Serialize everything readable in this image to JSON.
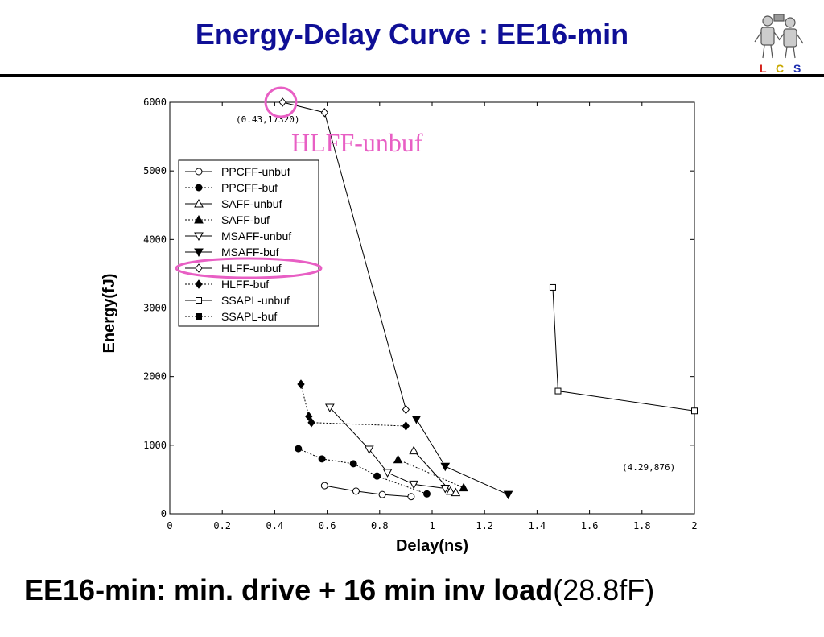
{
  "title": "Energy-Delay Curve : EE16-min",
  "logo": {
    "letters": [
      "L",
      "C",
      "S"
    ],
    "colors": [
      "#d4201a",
      "#c8a800",
      "#2030b0"
    ]
  },
  "caption": {
    "bold": "EE16-min: min. drive + 16 min inv load",
    "normal": "(28.8fF)"
  },
  "highlight_color": "#e85fc4",
  "highlight_label": "HLFF-unbuf",
  "chart_data": {
    "type": "line",
    "xlabel": "Delay(ns)",
    "ylabel": "Energy(fJ)",
    "xlim": [
      0,
      2
    ],
    "ylim": [
      0,
      6000
    ],
    "xticks": [
      "0",
      "0.2",
      "0.4",
      "0.6",
      "0.8",
      "1",
      "1.2",
      "1.4",
      "1.6",
      "1.8",
      "2"
    ],
    "yticks": [
      "0",
      "1000",
      "2000",
      "3000",
      "4000",
      "5000",
      "6000"
    ],
    "grid": false,
    "legend_position": "upper-left",
    "annotations": [
      {
        "text": "(0.43,17320)",
        "x": 0.43,
        "y": 5880
      },
      {
        "text": "(4.29,876)",
        "x": 1.72,
        "y": 680
      }
    ],
    "series": [
      {
        "name": "PPCFF-unbuf",
        "marker": "circle-open",
        "dash": "solid",
        "x": [
          0.59,
          0.71,
          0.81,
          0.92
        ],
        "y": [
          410,
          330,
          280,
          250
        ]
      },
      {
        "name": "PPCFF-buf",
        "marker": "circle-filled",
        "dash": "dotted",
        "x": [
          0.49,
          0.58,
          0.7,
          0.79,
          0.98
        ],
        "y": [
          950,
          800,
          730,
          550,
          290
        ]
      },
      {
        "name": "SAFF-unbuf",
        "marker": "triangle-up-open",
        "dash": "solid",
        "x": [
          0.93,
          1.07,
          1.09
        ],
        "y": [
          920,
          330,
          310
        ]
      },
      {
        "name": "SAFF-buf",
        "marker": "triangle-up-filled",
        "dash": "dotted",
        "x": [
          0.87,
          1.12
        ],
        "y": [
          790,
          380
        ]
      },
      {
        "name": "MSAFF-unbuf",
        "marker": "triangle-down-open",
        "dash": "solid",
        "x": [
          0.61,
          0.76,
          0.83,
          0.93,
          1.05
        ],
        "y": [
          1550,
          940,
          600,
          430,
          370
        ]
      },
      {
        "name": "MSAFF-buf",
        "marker": "triangle-down-filled",
        "dash": "solid",
        "x": [
          0.94,
          1.05,
          1.29
        ],
        "y": [
          1380,
          690,
          280
        ]
      },
      {
        "name": "HLFF-unbuf",
        "marker": "diamond-open",
        "dash": "solid",
        "x": [
          0.43,
          0.59,
          0.9
        ],
        "y": [
          6000,
          5850,
          1520
        ]
      },
      {
        "name": "HLFF-buf",
        "marker": "diamond-filled",
        "dash": "dotted",
        "x": [
          0.5,
          0.53,
          0.54,
          0.9
        ],
        "y": [
          1890,
          1420,
          1330,
          1280
        ]
      },
      {
        "name": "SSAPL-unbuf",
        "marker": "square-open",
        "dash": "solid",
        "x": [
          1.46,
          1.48,
          2.0
        ],
        "y": [
          3300,
          1790,
          1500
        ]
      },
      {
        "name": "SSAPL-buf",
        "marker": "square-filled",
        "dash": "dotted",
        "x": [],
        "y": []
      }
    ]
  }
}
